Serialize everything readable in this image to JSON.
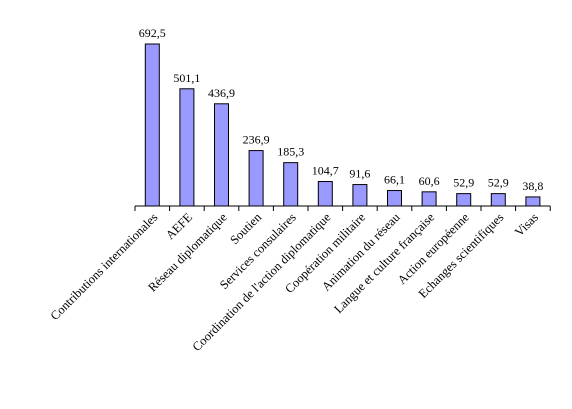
{
  "chart_data": {
    "type": "bar",
    "categories": [
      "Contributions internationales",
      "AEFE",
      "Réseau diplomatique",
      "Soutien",
      "Services consulaires",
      "Coordination de l'action diplomatique",
      "Coopération militaire",
      "Animation du réseau",
      "Langue et culture française",
      "Action européenne",
      "Echanges scientifiques",
      "Visas"
    ],
    "values": [
      692.5,
      501.1,
      436.9,
      236.9,
      185.3,
      104.7,
      91.6,
      66.1,
      60.6,
      52.9,
      52.9,
      38.8
    ],
    "value_labels": [
      "692,5",
      "501,1",
      "436,9",
      "236,9",
      "185,3",
      "104,7",
      "91,6",
      "66,1",
      "60,6",
      "52,9",
      "52,9",
      "38,8"
    ],
    "title": "",
    "xlabel": "",
    "ylabel": "",
    "ylim": [
      0,
      700
    ],
    "grid": false,
    "legend": "none",
    "bar_color": "#9999ff"
  }
}
